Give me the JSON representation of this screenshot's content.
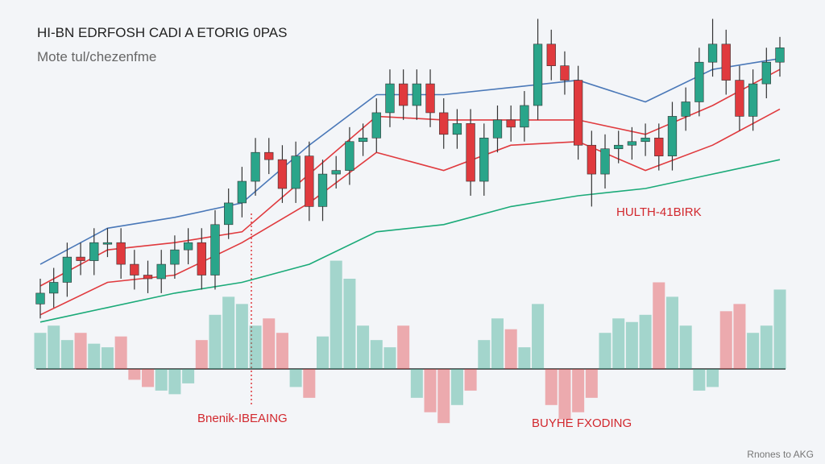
{
  "chart_data": {
    "type": "candlestick",
    "title": "HI-BN EDRFOSH CADI A EТORIG 0PAS",
    "subtitle": "Mote tul/chezenfme",
    "annotations": [
      "HULTH-41BIRK",
      "Bnenik-IBEAING",
      "BUYHE FXODING"
    ],
    "footer": "Rnones to AKG",
    "up_color": "#2aa58a",
    "down_color": "#e03a3e",
    "ylim": [
      0,
      100
    ],
    "open": [
      18,
      21,
      24,
      31,
      30,
      35,
      35,
      29,
      26,
      25,
      29,
      33,
      35,
      26,
      40,
      46,
      52,
      60,
      58,
      50,
      59,
      45,
      54,
      55,
      63,
      64,
      71,
      79,
      73,
      79,
      71,
      65,
      68,
      52,
      64,
      69,
      67,
      73,
      90,
      84,
      80,
      62,
      54,
      61,
      62,
      63,
      64,
      59,
      70,
      74,
      85,
      90,
      80,
      70,
      79,
      85
    ],
    "high": [
      25,
      28,
      35,
      35,
      39,
      39,
      39,
      33,
      30,
      33,
      37,
      39,
      39,
      44,
      50,
      56,
      64,
      64,
      62,
      63,
      63,
      58,
      59,
      67,
      68,
      75,
      83,
      83,
      83,
      83,
      75,
      72,
      72,
      68,
      73,
      73,
      77,
      97,
      94,
      88,
      84,
      66,
      65,
      66,
      67,
      68,
      68,
      74,
      78,
      89,
      97,
      94,
      84,
      83,
      89,
      92
    ],
    "low": [
      14,
      17,
      20,
      26,
      26,
      31,
      25,
      22,
      21,
      21,
      25,
      29,
      22,
      22,
      36,
      42,
      48,
      54,
      46,
      46,
      41,
      41,
      50,
      51,
      59,
      60,
      67,
      69,
      69,
      67,
      61,
      61,
      48,
      48,
      60,
      63,
      63,
      69,
      80,
      76,
      58,
      45,
      50,
      57,
      58,
      59,
      55,
      55,
      66,
      70,
      81,
      76,
      66,
      66,
      75,
      81
    ],
    "close": [
      21,
      24,
      31,
      30,
      35,
      35,
      29,
      26,
      25,
      29,
      33,
      35,
      26,
      40,
      46,
      52,
      60,
      58,
      50,
      59,
      45,
      54,
      55,
      63,
      64,
      71,
      79,
      73,
      79,
      71,
      65,
      68,
      52,
      64,
      69,
      67,
      73,
      90,
      84,
      80,
      62,
      54,
      61,
      62,
      63,
      64,
      59,
      70,
      74,
      85,
      90,
      80,
      70,
      79,
      85,
      89
    ],
    "volume": [
      10,
      12,
      8,
      10,
      7,
      6,
      9,
      -3,
      -5,
      -6,
      -7,
      -4,
      8,
      15,
      20,
      18,
      12,
      14,
      10,
      -5,
      -8,
      9,
      30,
      25,
      12,
      8,
      6,
      12,
      -8,
      -12,
      -15,
      -10,
      -6,
      8,
      14,
      11,
      6,
      18,
      -10,
      -14,
      -12,
      -8,
      10,
      14,
      13,
      15,
      24,
      20,
      12,
      -6,
      -5,
      16,
      18,
      10,
      12,
      22
    ],
    "moving_averages": [
      {
        "color": "#4a78b8",
        "x": [
          0,
          5,
          10,
          15,
          20,
          25,
          30,
          35,
          40,
          45,
          50,
          55
        ],
        "values": [
          29,
          39,
          42,
          46,
          62,
          76,
          76,
          78,
          80,
          74,
          83,
          86
        ]
      },
      {
        "color": "#e03a3e",
        "x": [
          0,
          5,
          10,
          15,
          20,
          25,
          30,
          35,
          40,
          45,
          50,
          55
        ],
        "values": [
          23,
          33,
          35,
          38,
          54,
          70,
          69,
          69,
          69,
          65,
          73,
          83
        ]
      },
      {
        "color": "#e03a3e",
        "x": [
          0,
          5,
          10,
          15,
          20,
          25,
          30,
          35,
          40,
          45,
          50,
          55
        ],
        "values": [
          15,
          24,
          26,
          35,
          46,
          60,
          55,
          62,
          63,
          55,
          62,
          72
        ]
      },
      {
        "color": "#1aaa78",
        "x": [
          0,
          5,
          10,
          15,
          20,
          25,
          30,
          35,
          40,
          45,
          50,
          55
        ],
        "values": [
          13,
          17,
          21,
          24,
          29,
          38,
          40,
          45,
          48,
          50,
          54,
          58
        ]
      }
    ]
  }
}
